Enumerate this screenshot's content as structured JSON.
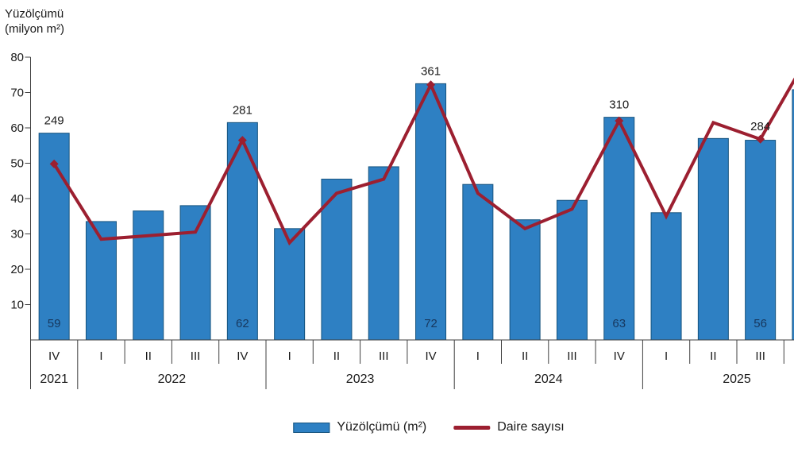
{
  "title": {
    "line1": "Yüzölçümü",
    "line2": "(milyon m²)"
  },
  "colors": {
    "bar_fill": "#2e80c3",
    "bar_border": "#16537e",
    "line": "#9c1f30",
    "bar_inner_label": "#17375e",
    "axis": "#3f3f3f",
    "text": "#1a1a1a"
  },
  "legend": {
    "items": [
      {
        "kind": "bar",
        "label": "Yüzölçümü (m²)"
      },
      {
        "kind": "line",
        "label": "Daire sayısı"
      }
    ]
  },
  "chart_data": {
    "type": "combo-bar-line",
    "title": "Yüzölçümü (milyon m²)",
    "ylabel": "Yüzölçümü (milyon m²)",
    "ylim": [
      0,
      80
    ],
    "ytick_step": 10,
    "grid": false,
    "legend_position": "bottom",
    "x_quarters": [
      "IV",
      "I",
      "II",
      "III",
      "IV",
      "I",
      "II",
      "III",
      "IV",
      "I",
      "II",
      "III",
      "IV",
      "I",
      "II",
      "III"
    ],
    "x_years": [
      {
        "label": "2021",
        "span": 1
      },
      {
        "label": "2022",
        "span": 4
      },
      {
        "label": "2023",
        "span": 4
      },
      {
        "label": "2024",
        "span": 4
      },
      {
        "label": "2025",
        "span": 4
      }
    ],
    "series": [
      {
        "name": "Yüzölçümü (m²)",
        "type": "bar",
        "values": [
          58.5,
          33.5,
          36.5,
          38,
          61.5,
          31.5,
          45.5,
          49,
          72.5,
          44,
          34,
          39.5,
          63,
          36,
          57,
          56.5
        ],
        "inner_labels": {
          "0": "59",
          "4": "62",
          "8": "72",
          "12": "63",
          "15": "56"
        }
      },
      {
        "name": "Daire sayısı",
        "type": "line",
        "values": [
          49.8,
          28.5,
          29.5,
          30.5,
          56.5,
          27.5,
          41.5,
          45.5,
          72.2,
          41.5,
          31.5,
          37,
          62,
          35,
          61.5,
          56.8
        ],
        "point_labels": {
          "0": "249",
          "4": "281",
          "8": "361",
          "12": "310",
          "15": "284"
        },
        "marker_indices": [
          0,
          4,
          8,
          12,
          15
        ],
        "clipped_continuation_value": 80
      }
    ],
    "clipped_next_bar_value": 70.8
  }
}
